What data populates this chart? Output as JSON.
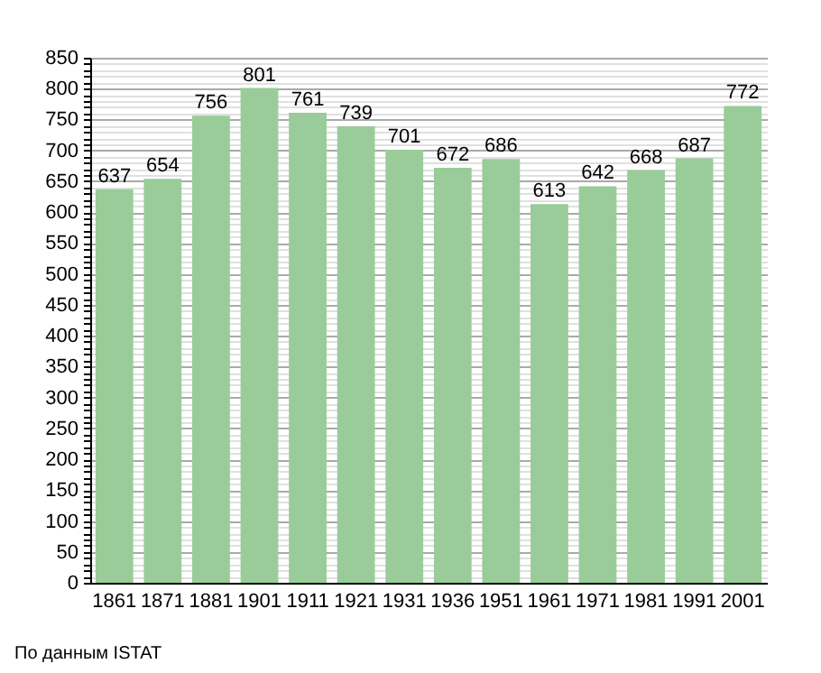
{
  "chart_data": {
    "type": "bar",
    "categories": [
      "1861",
      "1871",
      "1881",
      "1901",
      "1911",
      "1921",
      "1931",
      "1936",
      "1951",
      "1961",
      "1971",
      "1981",
      "1991",
      "2001"
    ],
    "values": [
      637,
      654,
      756,
      801,
      761,
      739,
      701,
      672,
      686,
      613,
      642,
      668,
      687,
      772
    ],
    "color": "#99cc99",
    "ylim": [
      0,
      850
    ],
    "yticks": [
      0,
      {
        "value": 10,
        "label": null
      },
      {
        "value": 20,
        "label": null
      },
      {
        "value": 30,
        "label": null
      },
      {
        "value": 40,
        "label": null
      },
      50,
      {
        "value": 60,
        "label": null
      },
      {
        "value": 70,
        "label": null
      },
      {
        "value": 80,
        "label": null
      },
      {
        "value": 90,
        "label": null
      },
      100,
      {
        "value": 110,
        "label": null
      },
      {
        "value": 120,
        "label": null
      },
      {
        "value": 130,
        "label": null
      },
      {
        "value": 140,
        "label": null
      },
      150,
      {
        "value": 160,
        "label": null
      },
      {
        "value": 170,
        "label": null
      },
      {
        "value": 180,
        "label": null
      },
      {
        "value": 190,
        "label": null
      },
      200,
      {
        "value": 210,
        "label": null
      },
      {
        "value": 220,
        "label": null
      },
      {
        "value": 230,
        "label": null
      },
      {
        "value": 240,
        "label": null
      },
      250,
      {
        "value": 260,
        "label": null
      },
      {
        "value": 270,
        "label": null
      },
      {
        "value": 280,
        "label": null
      },
      {
        "value": 290,
        "label": null
      },
      300,
      {
        "value": 310,
        "label": null
      },
      {
        "value": 320,
        "label": null
      },
      {
        "value": 330,
        "label": null
      },
      {
        "value": 340,
        "label": null
      },
      350,
      {
        "value": 360,
        "label": null
      },
      {
        "value": 370,
        "label": null
      },
      {
        "value": 380,
        "label": null
      },
      {
        "value": 390,
        "label": null
      },
      400,
      {
        "value": 410,
        "label": null
      },
      {
        "value": 420,
        "label": null
      },
      {
        "value": 430,
        "label": null
      },
      {
        "value": 440,
        "label": null
      },
      450,
      {
        "value": 460,
        "label": null
      },
      {
        "value": 470,
        "label": null
      },
      {
        "value": 480,
        "label": null
      },
      {
        "value": 490,
        "label": null
      },
      500,
      {
        "value": 510,
        "label": null
      },
      {
        "value": 520,
        "label": null
      },
      {
        "value": 530,
        "label": null
      },
      {
        "value": 540,
        "label": null
      },
      550,
      {
        "value": 560,
        "label": null
      },
      {
        "value": 570,
        "label": null
      },
      {
        "value": 580,
        "label": null
      },
      {
        "value": 590,
        "label": null
      },
      600,
      {
        "value": 610,
        "label": null
      },
      {
        "value": 620,
        "label": null
      },
      {
        "value": 630,
        "label": null
      },
      {
        "value": 640,
        "label": null
      },
      650,
      {
        "value": 660,
        "label": null
      },
      {
        "value": 670,
        "label": null
      },
      {
        "value": 680,
        "label": null
      },
      {
        "value": 690,
        "label": null
      },
      700,
      {
        "value": 710,
        "label": null
      },
      {
        "value": 720,
        "label": null
      },
      {
        "value": 730,
        "label": null
      },
      {
        "value": 740,
        "label": null
      },
      750,
      {
        "value": 760,
        "label": null
      },
      {
        "value": 770,
        "label": null
      },
      {
        "value": 780,
        "label": null
      },
      {
        "value": 790,
        "label": null
      },
      800,
      {
        "value": 810,
        "label": null
      },
      {
        "value": 820,
        "label": null
      },
      {
        "value": 830,
        "label": null
      },
      {
        "value": 840,
        "label": null
      },
      850
    ],
    "grid": true,
    "data_labels": true,
    "annotations": [
      "По данным ISTAT"
    ]
  }
}
